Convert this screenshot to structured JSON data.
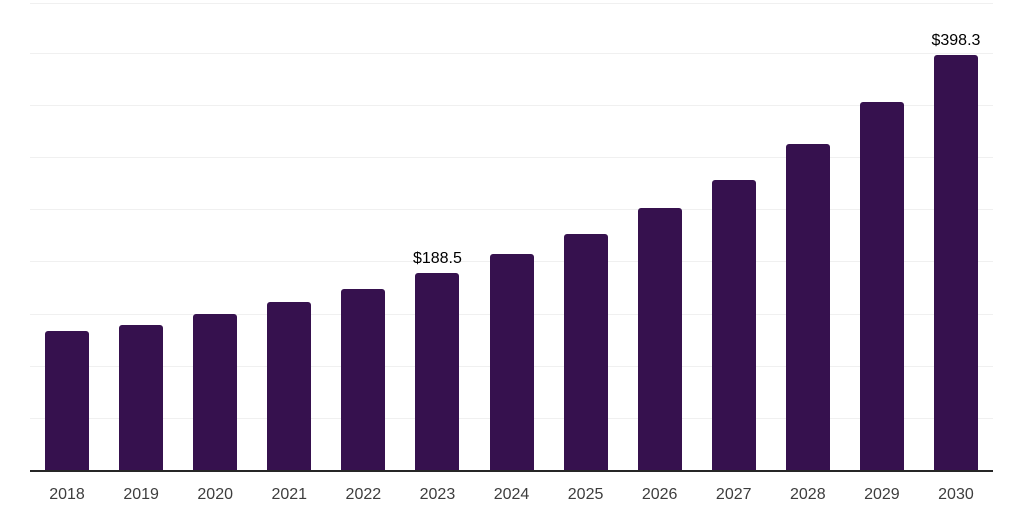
{
  "chart_data": {
    "type": "bar",
    "title": "",
    "xlabel": "",
    "ylabel": "",
    "categories": [
      "2018",
      "2019",
      "2020",
      "2021",
      "2022",
      "2023",
      "2024",
      "2025",
      "2026",
      "2027",
      "2028",
      "2029",
      "2030"
    ],
    "values": [
      133.0,
      139.4,
      150.0,
      161.5,
      174.0,
      188.5,
      207.0,
      226.5,
      251.0,
      278.5,
      313.0,
      353.0,
      398.3
    ],
    "data_labels": [
      "",
      "",
      "",
      "",
      "",
      "$188.5",
      "",
      "",
      "",
      "",
      "",
      "",
      "$398.3"
    ],
    "ylim": [
      0,
      400
    ],
    "gridline_step": 50,
    "grid": "horizontal",
    "legend": "none",
    "y_axis_tick_labels_visible": false,
    "colors": {
      "bar": "#36114e",
      "axis": "#262626",
      "gridline": "#f0f0f0",
      "tick_label": "#3d3d3d",
      "data_label": "#000000",
      "background": "#ffffff"
    }
  }
}
